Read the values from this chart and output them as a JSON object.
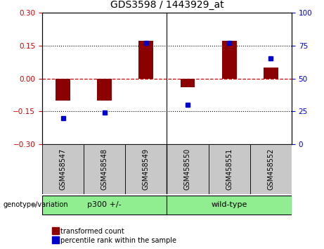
{
  "title": "GDS3598 / 1443929_at",
  "samples": [
    "GSM458547",
    "GSM458548",
    "GSM458549",
    "GSM458550",
    "GSM458551",
    "GSM458552"
  ],
  "transformed_count": [
    -0.1,
    -0.1,
    0.17,
    -0.04,
    0.17,
    0.05
  ],
  "percentile_rank": [
    20,
    24,
    77,
    30,
    77,
    65
  ],
  "group1_label": "p300 +/-",
  "group1_indices": [
    0,
    1,
    2
  ],
  "group2_label": "wild-type",
  "group2_indices": [
    3,
    4,
    5
  ],
  "group_color": "#90EE90",
  "bar_color": "#8B0000",
  "dot_color": "#0000CD",
  "left_ylim": [
    -0.3,
    0.3
  ],
  "right_ylim": [
    0,
    100
  ],
  "left_yticks": [
    -0.3,
    -0.15,
    0,
    0.15,
    0.3
  ],
  "right_yticks": [
    0,
    25,
    50,
    75,
    100
  ],
  "hline_color": "#CC0000",
  "dotted_color": "black",
  "bg_color": "#FFFFFF",
  "plot_bg": "#FFFFFF",
  "xtick_bg": "#C8C8C8",
  "label_transformed": "transformed count",
  "label_percentile": "percentile rank within the sample",
  "genotype_label": "genotype/variation",
  "bar_width": 0.35,
  "dot_size": 5
}
